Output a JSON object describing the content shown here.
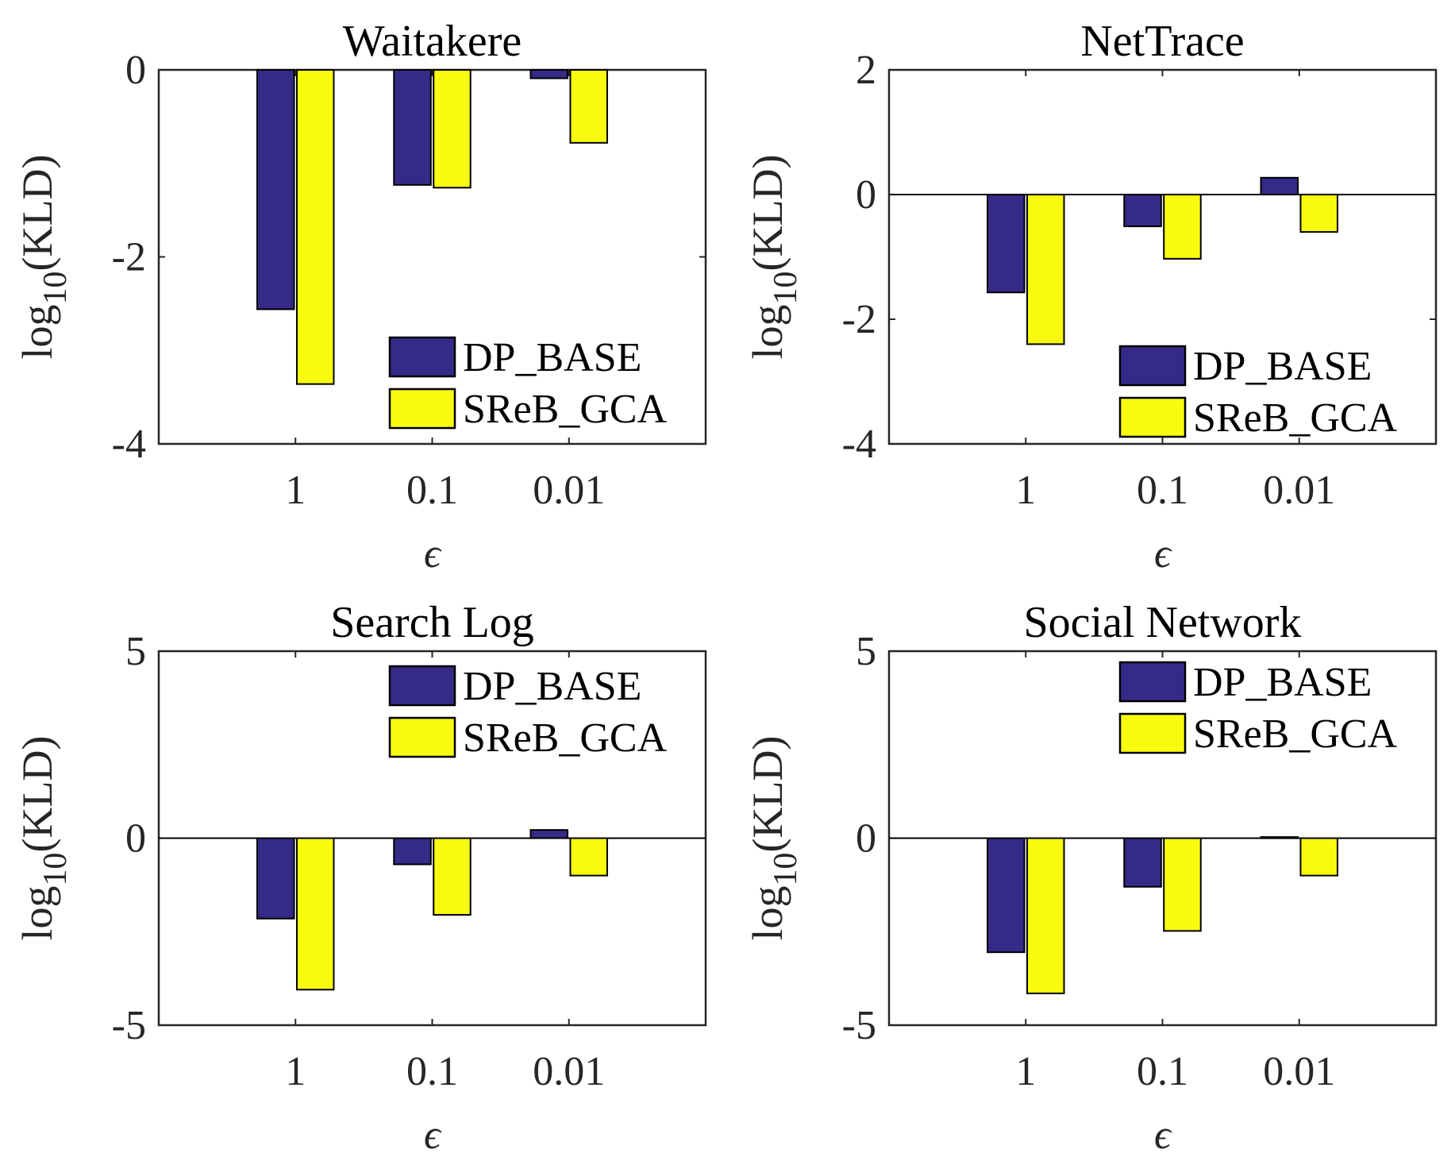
{
  "chart_data": [
    {
      "type": "bar",
      "title": "Waitakere",
      "xlabel": "ϵ",
      "ylabel": "log10(KLD)",
      "ylabel_main": "log",
      "ylabel_sub": "10",
      "ylabel_rest": "(KLD)",
      "categories": [
        "1",
        "0.1",
        "0.01"
      ],
      "ylim": [
        -4,
        0
      ],
      "yticks": [
        "0",
        "-2",
        "-4"
      ],
      "ytick_values": [
        0,
        -2,
        -4
      ],
      "legend_placement": "bottom-right",
      "series": [
        {
          "name": "DP_BASE",
          "color": "#352a87",
          "values": [
            -2.56,
            -1.23,
            -0.09
          ]
        },
        {
          "name": "SReB_GCA",
          "color": "#f9fb0e",
          "values": [
            -3.36,
            -1.26,
            -0.78
          ]
        }
      ]
    },
    {
      "type": "bar",
      "title": "NetTrace",
      "xlabel": "ϵ",
      "ylabel": "log10(KLD)",
      "ylabel_main": "log",
      "ylabel_sub": "10",
      "ylabel_rest": "(KLD)",
      "categories": [
        "1",
        "0.1",
        "0.01"
      ],
      "ylim": [
        -4,
        2
      ],
      "yticks": [
        "2",
        "0",
        "-2",
        "-4"
      ],
      "ytick_values": [
        2,
        0,
        -2,
        -4
      ],
      "legend_placement": "bottom-right",
      "series": [
        {
          "name": "DP_BASE",
          "color": "#352a87",
          "values": [
            -1.57,
            -0.51,
            0.27
          ]
        },
        {
          "name": "SReB_GCA",
          "color": "#f9fb0e",
          "values": [
            -2.4,
            -1.03,
            -0.6
          ]
        }
      ]
    },
    {
      "type": "bar",
      "title": "Search Log",
      "xlabel": "ϵ",
      "ylabel": "log10(KLD)",
      "ylabel_main": "log",
      "ylabel_sub": "10",
      "ylabel_rest": "(KLD)",
      "categories": [
        "1",
        "0.1",
        "0.01"
      ],
      "ylim": [
        -5,
        5
      ],
      "yticks": [
        "5",
        "0",
        "-5"
      ],
      "ytick_values": [
        5,
        0,
        -5
      ],
      "legend_placement": "top-right",
      "series": [
        {
          "name": "DP_BASE",
          "color": "#352a87",
          "values": [
            -2.15,
            -0.7,
            0.22
          ]
        },
        {
          "name": "SReB_GCA",
          "color": "#f9fb0e",
          "values": [
            -4.05,
            -2.05,
            -1.0
          ]
        }
      ]
    },
    {
      "type": "bar",
      "title": "Social Network",
      "xlabel": "ϵ",
      "ylabel": "log10(KLD)",
      "ylabel_main": "log",
      "ylabel_sub": "10",
      "ylabel_rest": "(KLD)",
      "categories": [
        "1",
        "0.1",
        "0.01"
      ],
      "ylim": [
        -5,
        5
      ],
      "yticks": [
        "5",
        "0",
        "-5"
      ],
      "ytick_values": [
        5,
        0,
        -5
      ],
      "legend_placement": "top-right",
      "series": [
        {
          "name": "DP_BASE",
          "color": "#352a87",
          "values": [
            -3.05,
            -1.3,
            0.03
          ]
        },
        {
          "name": "SReB_GCA",
          "color": "#f9fb0e",
          "values": [
            -4.15,
            -2.48,
            -1.0
          ]
        }
      ]
    }
  ]
}
